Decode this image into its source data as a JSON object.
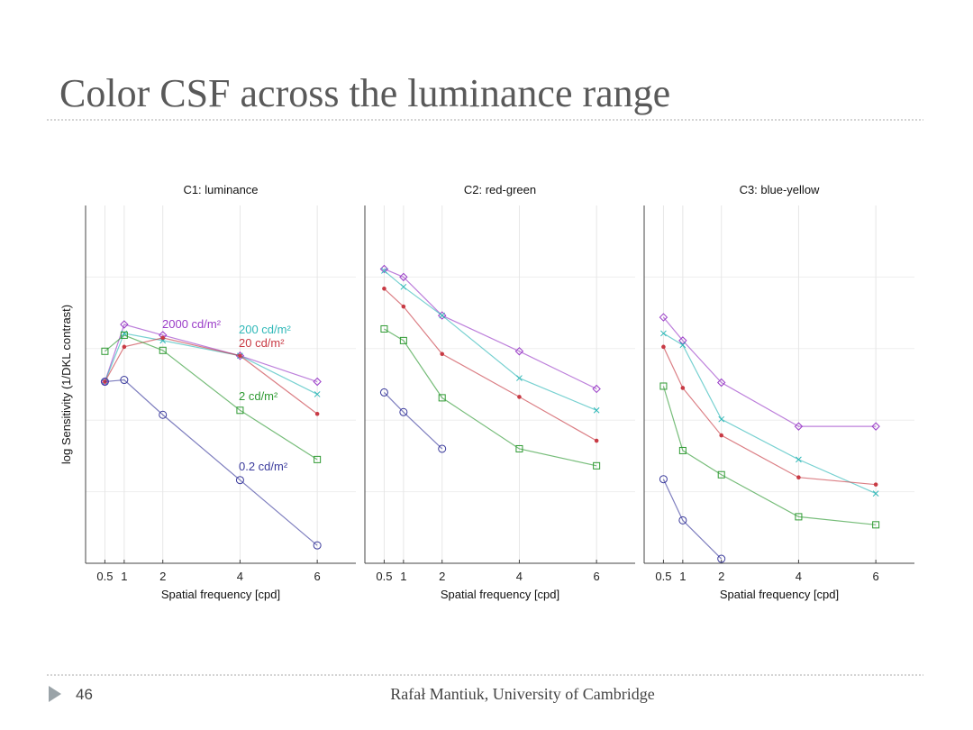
{
  "title": "Color CSF across the luminance range",
  "footer": {
    "page": "46",
    "author": "Rafał Mantiuk, University of Cambridge"
  },
  "chart_data": [
    {
      "type": "line",
      "title": "C1: luminance",
      "xlabel": "Spatial frequency [cpd]",
      "ylabel": "log Sensitivity (1/DKL contrast)",
      "x": [
        0.5,
        1,
        2,
        4,
        6
      ],
      "xlim": [
        0,
        7
      ],
      "xticks": [
        0.5,
        1,
        2,
        4,
        6
      ],
      "ylim": [
        0,
        4
      ],
      "grid": true,
      "series": [
        {
          "name": "2000 cd/m²",
          "color": "#9a3cc8",
          "marker": "diamond",
          "values": [
            2.03,
            2.67,
            2.55,
            2.32,
            2.03
          ]
        },
        {
          "name": "200 cd/m²",
          "color": "#2fb8b8",
          "marker": "x",
          "values": [
            2.03,
            2.57,
            2.49,
            2.32,
            1.89
          ]
        },
        {
          "name": "20 cd/m²",
          "color": "#c83a44",
          "marker": "dot",
          "values": [
            2.03,
            2.42,
            2.52,
            2.32,
            1.67
          ]
        },
        {
          "name": "2 cd/m²",
          "color": "#2e9a32",
          "marker": "square",
          "values": [
            2.37,
            2.55,
            2.38,
            1.71,
            1.16
          ]
        },
        {
          "name": "0.2 cd/m²",
          "color": "#3a3a9c",
          "marker": "circle",
          "values": [
            2.03,
            2.05,
            1.66,
            0.93,
            0.2
          ]
        }
      ]
    },
    {
      "type": "line",
      "title": "C2: red-green",
      "xlabel": "Spatial frequency [cpd]",
      "x": [
        0.5,
        1,
        2,
        4,
        6
      ],
      "xlim": [
        0,
        7
      ],
      "xticks": [
        0.5,
        1,
        2,
        4,
        6
      ],
      "ylim": [
        0,
        4
      ],
      "grid": true,
      "series": [
        {
          "color": "#9a3cc8",
          "marker": "diamond",
          "values": [
            3.29,
            3.2,
            2.77,
            2.37,
            1.95
          ]
        },
        {
          "color": "#2fb8b8",
          "marker": "x",
          "values": [
            3.27,
            3.09,
            2.77,
            2.07,
            1.71
          ]
        },
        {
          "color": "#c83a44",
          "marker": "dot",
          "values": [
            3.07,
            2.87,
            2.34,
            1.86,
            1.37
          ]
        },
        {
          "color": "#2e9a32",
          "marker": "square",
          "values": [
            2.62,
            2.49,
            1.85,
            1.28,
            1.09
          ]
        },
        {
          "color": "#3a3a9c",
          "marker": "circle",
          "values": [
            1.91,
            1.69,
            1.28,
            null,
            null
          ]
        }
      ]
    },
    {
      "type": "line",
      "title": "C3: blue-yellow",
      "xlabel": "Spatial frequency [cpd]",
      "x": [
        0.5,
        1,
        2,
        4,
        6
      ],
      "xlim": [
        0,
        7
      ],
      "xticks": [
        0.5,
        1,
        2,
        4,
        6
      ],
      "ylim": [
        0,
        4
      ],
      "grid": true,
      "series": [
        {
          "color": "#9a3cc8",
          "marker": "diamond",
          "values": [
            2.75,
            2.49,
            2.02,
            1.53,
            1.53
          ]
        },
        {
          "color": "#2fb8b8",
          "marker": "x",
          "values": [
            2.57,
            2.44,
            1.61,
            1.16,
            0.78
          ]
        },
        {
          "color": "#c83a44",
          "marker": "dot",
          "values": [
            2.42,
            1.96,
            1.43,
            0.96,
            0.88
          ]
        },
        {
          "color": "#2e9a32",
          "marker": "square",
          "values": [
            1.98,
            1.26,
            0.99,
            0.52,
            0.43
          ]
        },
        {
          "color": "#3a3a9c",
          "marker": "circle",
          "values": [
            0.94,
            0.48,
            0.05,
            null,
            null
          ]
        }
      ]
    }
  ]
}
